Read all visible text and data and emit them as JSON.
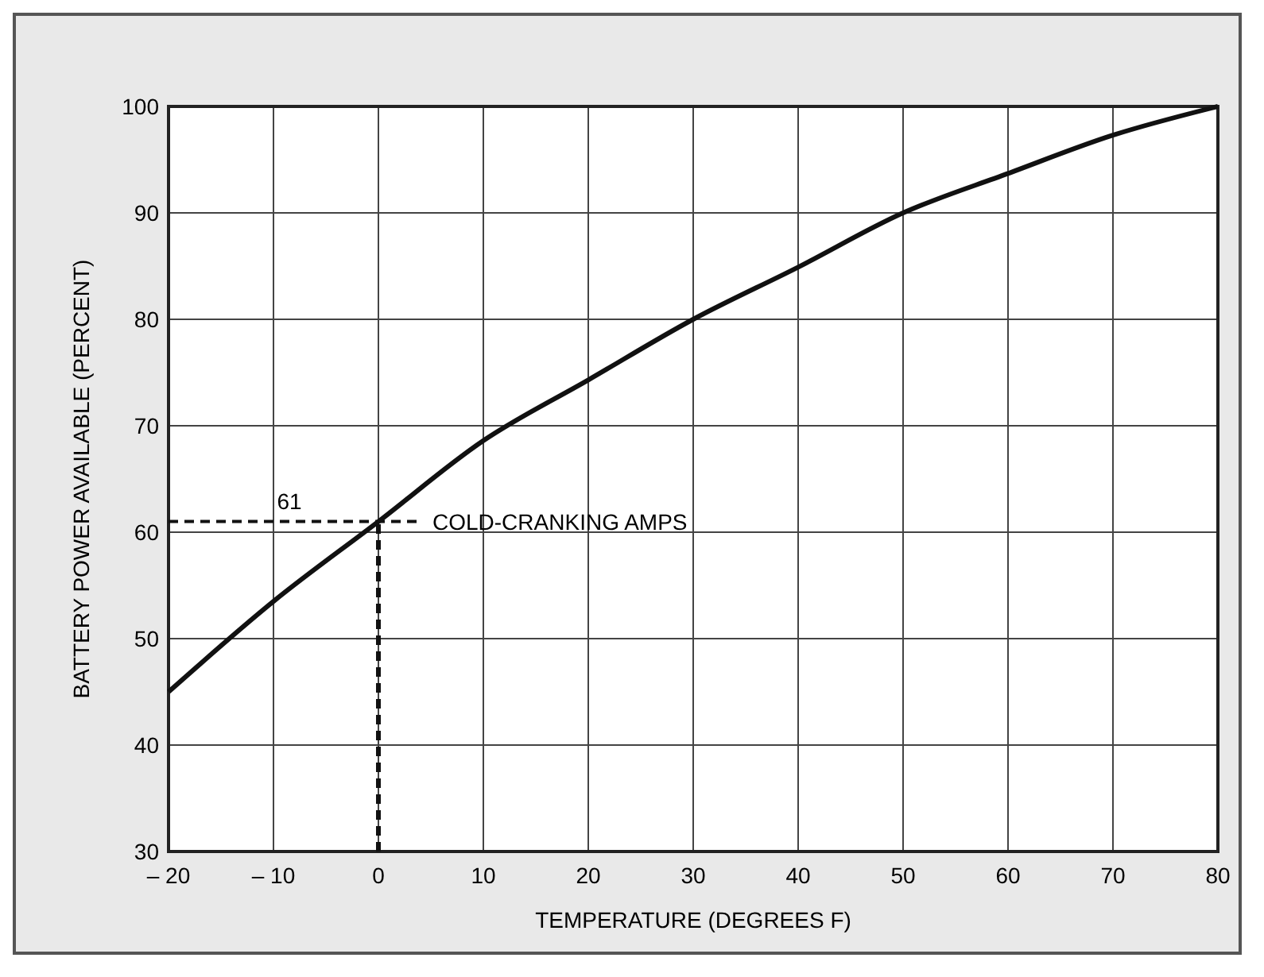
{
  "chart_data": {
    "type": "line",
    "xlabel": "TEMPERATURE (DEGREES F)",
    "ylabel": "BATTERY POWER AVAILABLE (PERCENT)",
    "x": [
      -20,
      -10,
      0,
      10,
      20,
      30,
      40,
      50,
      60,
      70,
      80
    ],
    "series": [
      {
        "color": "#111111",
        "values": [
          45,
          53.5,
          61,
          68.6,
          74.3,
          80,
          84.9,
          90,
          93.7,
          97.3,
          100
        ]
      }
    ],
    "xlim": [
      -20,
      80
    ],
    "xticks": [
      {
        "value": -20,
        "label": "– 20"
      },
      {
        "value": -10,
        "label": "– 10"
      },
      0,
      10,
      20,
      30,
      40,
      50,
      60,
      70,
      80
    ],
    "ylim": [
      30,
      100
    ],
    "yticks": [
      30,
      40,
      50,
      60,
      70,
      80,
      90,
      100
    ],
    "grid": true,
    "marker": "none",
    "line_style": "solid",
    "ref_lines": [
      {
        "axis": "y",
        "value": 61,
        "label": "61",
        "line_style": "dashed"
      },
      {
        "axis": "x",
        "value": 0,
        "line_style": "dashed"
      }
    ],
    "annotations": [
      {
        "text": "COLD-CRANKING AMPS",
        "x": 0,
        "y": 61
      }
    ]
  }
}
